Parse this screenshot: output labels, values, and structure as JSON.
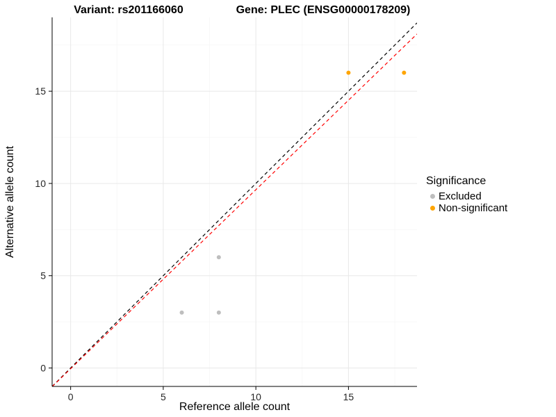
{
  "chart_data": {
    "type": "scatter",
    "title_left": "Variant: rs201166060",
    "title_right": "Gene: PLEC (ENSG00000178209)",
    "xlabel": "Reference allele count",
    "ylabel": "Alternative allele count",
    "xlim": [
      -1,
      18.7
    ],
    "ylim": [
      -1,
      19
    ],
    "xticks": [
      0,
      5,
      10,
      15
    ],
    "yticks": [
      0,
      5,
      10,
      15
    ],
    "grid": {
      "major_color": "#E8E8E8",
      "minor_color": "#F4F4F4",
      "on": true
    },
    "axis_color": "#000000",
    "tick_label_color": "#262626",
    "series": [
      {
        "name": "Excluded",
        "color": "#BEBEBE",
        "points": [
          [
            6,
            3
          ],
          [
            8,
            3
          ],
          [
            8,
            6
          ]
        ]
      },
      {
        "name": "Non-significant",
        "color": "#FFA500",
        "points": [
          [
            15,
            16
          ],
          [
            18,
            16
          ]
        ]
      }
    ],
    "lines": [
      {
        "name": "identity-line",
        "color": "#000000",
        "slope": 1,
        "intercept": 0,
        "dash": "5 4"
      },
      {
        "name": "fit-line",
        "color": "#FF0000",
        "slope": 0.97,
        "intercept": -0.04,
        "dash": "5 4"
      }
    ],
    "legend": {
      "title": "Significance",
      "position": "right",
      "entries": [
        {
          "label": "Excluded",
          "color": "#BEBEBE"
        },
        {
          "label": "Non-significant",
          "color": "#FFA500"
        }
      ]
    }
  }
}
